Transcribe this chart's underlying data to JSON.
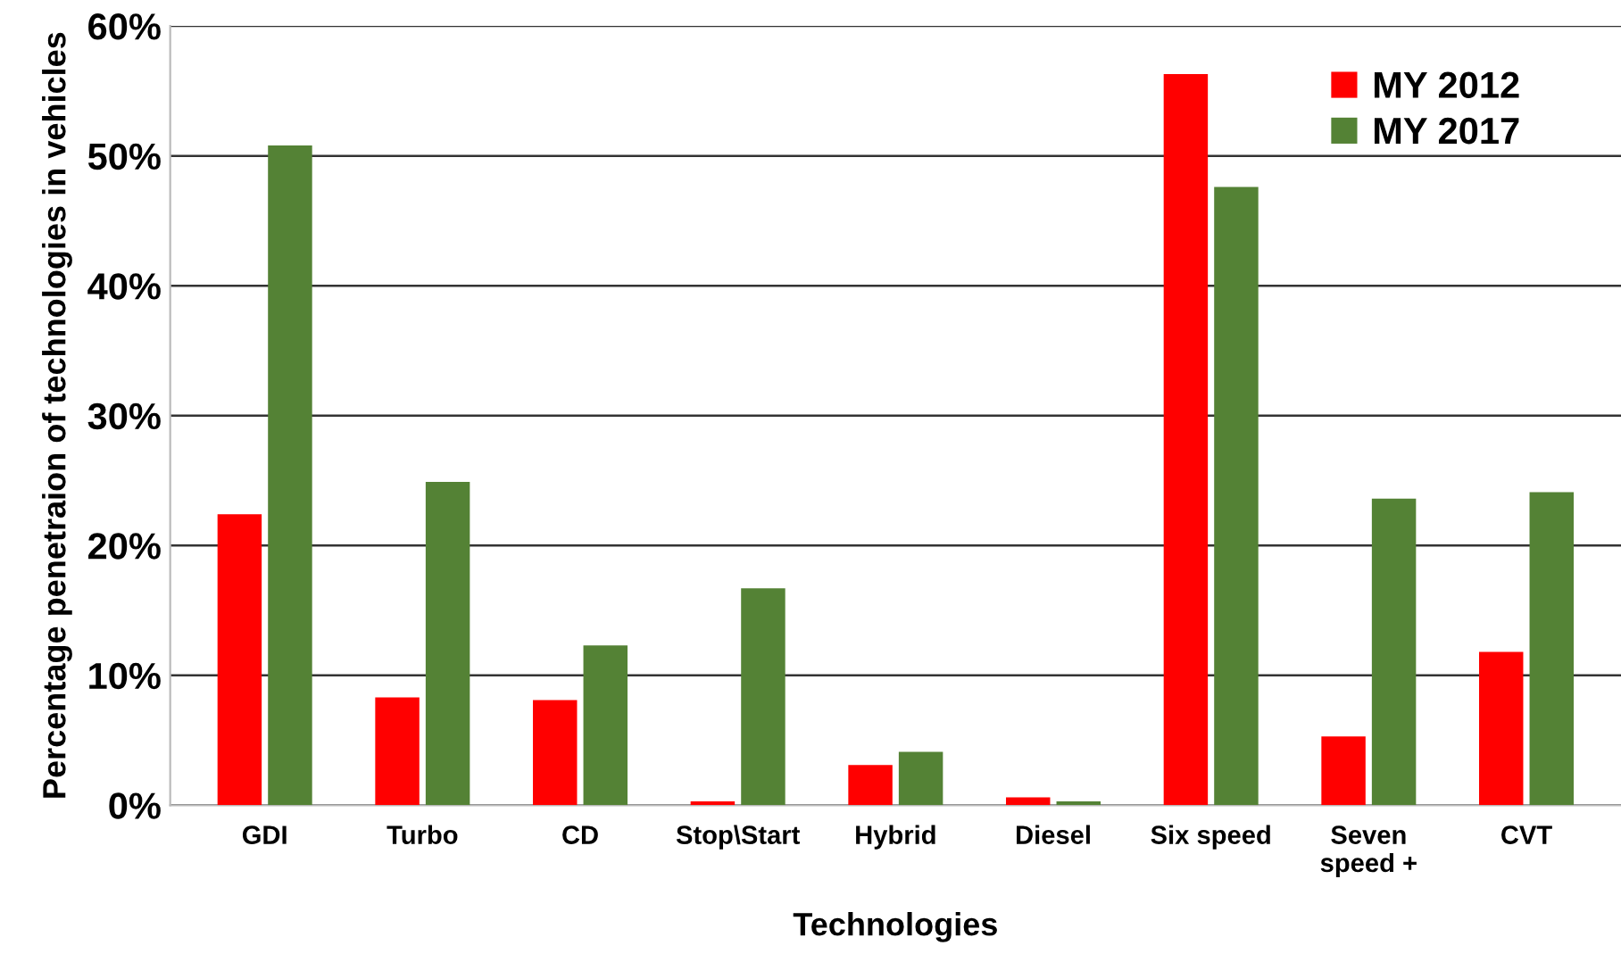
{
  "chart_data": {
    "type": "bar",
    "xlabel": "Technologies",
    "ylabel": "Percentage penetraion of technologies in vehicles",
    "categories": [
      "GDI",
      "Turbo",
      "CD",
      "Stop\\Start",
      "Hybrid",
      "Diesel",
      "Six speed",
      "Seven\nspeed +",
      "CVT"
    ],
    "series": [
      {
        "name": "MY 2012",
        "color": "#ff0000",
        "values": [
          22.4,
          8.3,
          8.1,
          0.3,
          3.1,
          0.6,
          56.3,
          5.3,
          11.8
        ]
      },
      {
        "name": "MY 2017",
        "color": "#548235",
        "values": [
          50.8,
          24.9,
          12.3,
          16.7,
          4.1,
          0.3,
          47.6,
          23.6,
          24.1
        ]
      }
    ],
    "ylim": [
      0,
      60
    ],
    "yticks": [
      {
        "value": 0,
        "label": "0%"
      },
      {
        "value": 10,
        "label": "10%"
      },
      {
        "value": 20,
        "label": "20%"
      },
      {
        "value": 30,
        "label": "30%"
      },
      {
        "value": 40,
        "label": "40%"
      },
      {
        "value": 50,
        "label": "50%"
      },
      {
        "value": 60,
        "label": "60%"
      }
    ],
    "grid": "y",
    "legend": "top right"
  }
}
